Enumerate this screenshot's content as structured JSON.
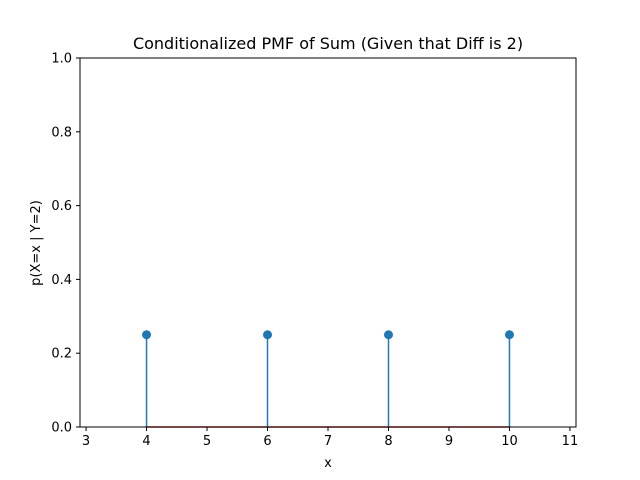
{
  "chart_data": {
    "type": "stem",
    "title": "Conditionalized PMF of Sum (Given that Diff is 2)",
    "xlabel": "x",
    "ylabel": "p(X=x | Y=2)",
    "x": [
      4,
      6,
      8,
      10
    ],
    "y": [
      0.25,
      0.25,
      0.25,
      0.25
    ],
    "xlim": [
      2.9,
      11.1
    ],
    "ylim": [
      0.0,
      1.0
    ],
    "xticks": [
      3,
      4,
      5,
      6,
      7,
      8,
      9,
      10,
      11
    ],
    "yticks": [
      0.0,
      0.2,
      0.4,
      0.6,
      0.8,
      1.0
    ],
    "ytick_labels": [
      "0.0",
      "0.2",
      "0.4",
      "0.6",
      "0.8",
      "1.0"
    ],
    "grid": false,
    "stem_color": "#1f77b4",
    "baseline_color": "#d62728"
  }
}
